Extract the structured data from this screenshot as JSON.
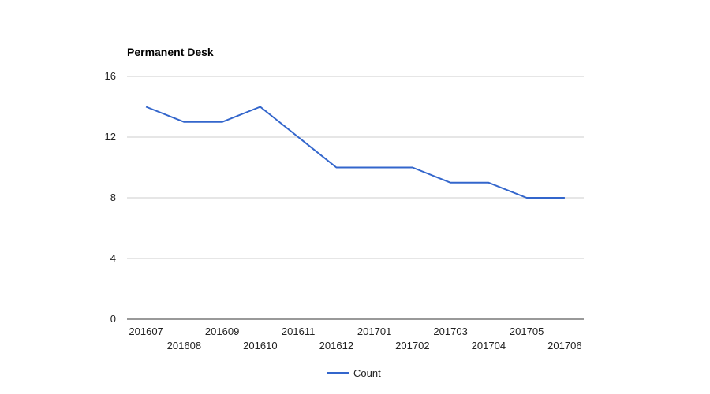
{
  "chart_data": {
    "type": "line",
    "title": "Permanent Desk",
    "categories": [
      "201607",
      "201608",
      "201609",
      "201610",
      "201611",
      "201612",
      "201701",
      "201702",
      "201703",
      "201704",
      "201705",
      "201706"
    ],
    "series": [
      {
        "name": "Count",
        "color": "#3366cc",
        "values": [
          14,
          13,
          13,
          14,
          12,
          10,
          10,
          10,
          9,
          9,
          8,
          8
        ]
      }
    ],
    "yticks": [
      "0",
      "4",
      "8",
      "12",
      "16"
    ],
    "ylim": [
      0,
      16
    ],
    "grid": true,
    "legend_position": "bottom"
  }
}
